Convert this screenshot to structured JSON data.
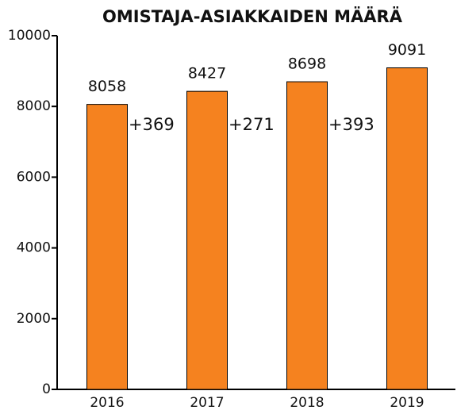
{
  "chart_data": {
    "type": "bar",
    "title": "OMISTAJA-ASIAKKAIDEN MÄÄRÄ",
    "categories": [
      "2016",
      "2017",
      "2018",
      "2019"
    ],
    "values": [
      8058,
      8427,
      8698,
      9091
    ],
    "color": "#f5821f",
    "annotations": [
      "+369",
      "+271",
      "+393"
    ],
    "ylim": [
      0,
      10000
    ],
    "yticks": [
      0,
      2000,
      4000,
      6000,
      8000,
      10000
    ],
    "grid": false
  }
}
